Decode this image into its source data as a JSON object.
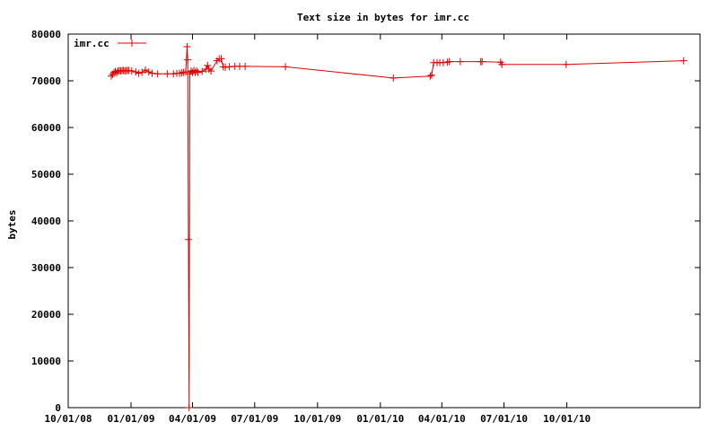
{
  "chart_data": {
    "type": "line",
    "title": "Text size in bytes for imr.cc",
    "xlabel": "",
    "ylabel": "bytes",
    "x_axis_type": "date",
    "xlim": [
      "2008-10-01",
      "2011-04-14"
    ],
    "ylim": [
      0,
      80000
    ],
    "x_ticks": [
      {
        "date": "2008-10-01",
        "label": "10/01/08"
      },
      {
        "date": "2009-01-01",
        "label": "01/01/09"
      },
      {
        "date": "2009-04-01",
        "label": "04/01/09"
      },
      {
        "date": "2009-07-01",
        "label": "07/01/09"
      },
      {
        "date": "2009-10-01",
        "label": "10/01/09"
      },
      {
        "date": "2010-01-01",
        "label": "01/01/10"
      },
      {
        "date": "2010-04-01",
        "label": "04/01/10"
      },
      {
        "date": "2010-07-01",
        "label": "07/01/10"
      },
      {
        "date": "2010-10-01",
        "label": "10/01/10"
      }
    ],
    "y_ticks": [
      0,
      10000,
      20000,
      30000,
      40000,
      50000,
      60000,
      70000,
      80000
    ],
    "grid": false,
    "legend_position": "top-left",
    "series": [
      {
        "name": "imr.cc",
        "color": "#e00000",
        "marker": "plus",
        "points": [
          [
            "2008-12-03",
            71000
          ],
          [
            "2008-12-05",
            71400
          ],
          [
            "2008-12-07",
            71800
          ],
          [
            "2008-12-09",
            72000
          ],
          [
            "2008-12-11",
            71700
          ],
          [
            "2008-12-13",
            72100
          ],
          [
            "2008-12-15",
            72200
          ],
          [
            "2008-12-17",
            72100
          ],
          [
            "2008-12-19",
            72200
          ],
          [
            "2008-12-21",
            72200
          ],
          [
            "2008-12-23",
            72100
          ],
          [
            "2008-12-25",
            72200
          ],
          [
            "2008-12-27",
            72200
          ],
          [
            "2008-12-29",
            72200
          ],
          [
            "2009-01-02",
            72100
          ],
          [
            "2009-01-08",
            71900
          ],
          [
            "2009-01-12",
            71600
          ],
          [
            "2009-01-17",
            71800
          ],
          [
            "2009-01-22",
            72300
          ],
          [
            "2009-01-27",
            71900
          ],
          [
            "2009-02-01",
            71600
          ],
          [
            "2009-02-09",
            71500
          ],
          [
            "2009-02-23",
            71500
          ],
          [
            "2009-03-04",
            71500
          ],
          [
            "2009-03-09",
            71600
          ],
          [
            "2009-03-13",
            71600
          ],
          [
            "2009-03-16",
            71700
          ],
          [
            "2009-03-19",
            71800
          ],
          [
            "2009-03-22",
            71900
          ],
          [
            "2009-03-24",
            77300
          ],
          [
            "2009-03-25",
            74500
          ],
          [
            "2009-03-26",
            36000
          ],
          [
            "2009-03-27",
            0
          ],
          [
            "2009-03-28",
            71500
          ],
          [
            "2009-03-30",
            72100
          ],
          [
            "2009-04-01",
            71800
          ],
          [
            "2009-04-03",
            72200
          ],
          [
            "2009-04-05",
            71800
          ],
          [
            "2009-04-07",
            72100
          ],
          [
            "2009-04-09",
            71800
          ],
          [
            "2009-04-15",
            72000
          ],
          [
            "2009-04-21",
            72500
          ],
          [
            "2009-04-23",
            73300
          ],
          [
            "2009-04-25",
            72500
          ],
          [
            "2009-04-28",
            72100
          ],
          [
            "2009-05-07",
            74300
          ],
          [
            "2009-05-10",
            74700
          ],
          [
            "2009-05-13",
            74700
          ],
          [
            "2009-05-16",
            73000
          ],
          [
            "2009-05-19",
            72900
          ],
          [
            "2009-05-25",
            73000
          ],
          [
            "2009-06-02",
            73100
          ],
          [
            "2009-06-09",
            73100
          ],
          [
            "2009-06-17",
            73100
          ],
          [
            "2009-08-15",
            73000
          ],
          [
            "2010-01-20",
            70600
          ],
          [
            "2010-03-15",
            71000
          ],
          [
            "2010-03-17",
            71200
          ],
          [
            "2010-03-20",
            73900
          ],
          [
            "2010-03-25",
            73900
          ],
          [
            "2010-03-29",
            73900
          ],
          [
            "2010-04-03",
            73900
          ],
          [
            "2010-04-09",
            74000
          ],
          [
            "2010-04-12",
            74100
          ],
          [
            "2010-04-28",
            74100
          ],
          [
            "2010-05-28",
            74100
          ],
          [
            "2010-05-30",
            74100
          ],
          [
            "2010-06-26",
            74000
          ],
          [
            "2010-06-28",
            73500
          ],
          [
            "2010-09-30",
            73500
          ],
          [
            "2011-03-21",
            74300
          ]
        ]
      }
    ]
  }
}
